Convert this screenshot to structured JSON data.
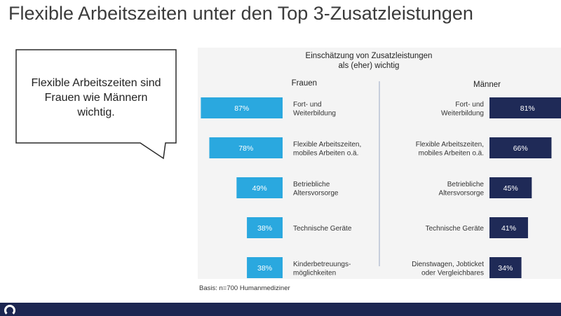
{
  "title": "Flexible Arbeitszeiten unter den Top 3-Zusatzleistungen",
  "callout": {
    "lines": [
      "Flexible Arbeitszeiten sind",
      "Frauen wie Männern",
      "wichtig."
    ]
  },
  "footnote": "Basis: n=700 Humanmediziner",
  "colors": {
    "frauen": "#2aa8df",
    "maenner": "#1f2a57",
    "panel": "#f4f4f4",
    "footer": "#1c2651"
  },
  "chart_data": {
    "type": "bar",
    "title_lines": [
      "Einschätzung von Zusatzleistungen",
      "als (eher) wichtig"
    ],
    "xlim": [
      0,
      100
    ],
    "panels": [
      {
        "name": "Frauen",
        "color": "#2aa8df",
        "categories": [
          [
            "Fort- und",
            "Weiterbildung"
          ],
          [
            "Flexible Arbeitszeiten,",
            "mobiles Arbeiten o.ä."
          ],
          [
            "Betriebliche",
            "Altersvorsorge"
          ],
          [
            "Technische Geräte"
          ],
          [
            "Kinderbetreuungs-",
            "möglichkeiten"
          ]
        ],
        "values": [
          87,
          78,
          49,
          38,
          38
        ],
        "labels": [
          "87%",
          "78%",
          "49%",
          "38%",
          "38%"
        ]
      },
      {
        "name": "Männer",
        "color": "#1f2a57",
        "categories": [
          [
            "Fort- und",
            "Weiterbildung"
          ],
          [
            "Flexible Arbeitszeiten,",
            "mobiles Arbeiten o.ä."
          ],
          [
            "Betriebliche",
            "Altersvorsorge"
          ],
          [
            "Technische Geräte"
          ],
          [
            "Dienstwagen, Jobticket",
            "oder Vergleichbares"
          ]
        ],
        "values": [
          81,
          66,
          45,
          41,
          34
        ],
        "labels": [
          "81%",
          "66%",
          "45%",
          "41%",
          "34%"
        ]
      }
    ]
  }
}
